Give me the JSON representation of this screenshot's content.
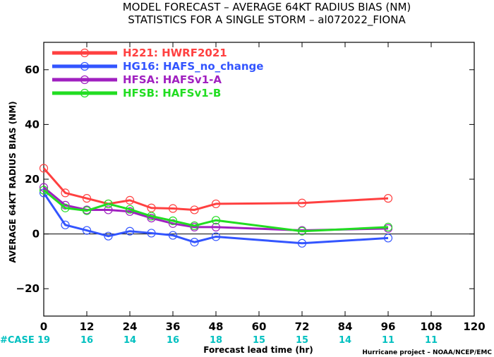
{
  "chart_data": {
    "type": "line",
    "title": "MODEL FORECAST – AVERAGE 64KT RADIUS BIAS (NM)",
    "subtitle": "STATISTICS FOR A SINGLE STORM – al072022_FIONA",
    "xlabel": "Forecast lead time (hr)",
    "ylabel": "AVERAGE 64KT RADIUS BIAS (NM)",
    "xlim": [
      0,
      120
    ],
    "ylim": [
      -30,
      70
    ],
    "xticks": [
      0,
      12,
      24,
      36,
      48,
      60,
      72,
      84,
      96,
      108,
      120
    ],
    "yticks": [
      -20,
      0,
      20,
      40,
      60
    ],
    "zero_line": true,
    "legend_position": "top-left",
    "series": [
      {
        "name": "H221",
        "label": "HWRF2021",
        "color": "#ff4040",
        "x": [
          0,
          6,
          12,
          18,
          24,
          30,
          36,
          42,
          48,
          72,
          96
        ],
        "y": [
          24,
          15,
          13,
          11,
          12.3,
          9.5,
          9.3,
          8.8,
          11,
          11.3,
          13
        ]
      },
      {
        "name": "HG16",
        "label": "HAFS_no_change",
        "color": "#3355ff",
        "x": [
          0,
          6,
          12,
          18,
          24,
          30,
          36,
          42,
          48,
          72,
          96
        ],
        "y": [
          15,
          3.3,
          1.3,
          -0.8,
          1,
          0.3,
          -0.5,
          -3,
          -1,
          -3.4,
          -1.5
        ]
      },
      {
        "name": "HFSA",
        "label": "HAFSv1-A",
        "color": "#a020c0",
        "x": [
          0,
          6,
          12,
          18,
          24,
          30,
          36,
          42,
          48,
          72,
          96
        ],
        "y": [
          17,
          10.5,
          8.8,
          8.8,
          8.2,
          5.8,
          3.8,
          2.5,
          2.5,
          1.3,
          2
        ]
      },
      {
        "name": "HFSB",
        "label": "HAFSv1-B",
        "color": "#22dd22",
        "x": [
          0,
          6,
          12,
          18,
          24,
          30,
          36,
          42,
          48,
          72,
          96
        ],
        "y": [
          16,
          9.5,
          8.5,
          11,
          9,
          6.5,
          4.8,
          3,
          5,
          1,
          2.5
        ]
      }
    ],
    "case_label": "#CASE",
    "cases": [
      {
        "x": 0,
        "n": "19"
      },
      {
        "x": 12,
        "n": "16"
      },
      {
        "x": 24,
        "n": "14"
      },
      {
        "x": 36,
        "n": "16"
      },
      {
        "x": 48,
        "n": "18"
      },
      {
        "x": 60,
        "n": "15"
      },
      {
        "x": 72,
        "n": "15"
      },
      {
        "x": 84,
        "n": "14"
      },
      {
        "x": 96,
        "n": "11"
      },
      {
        "x": 108,
        "n": "11"
      }
    ],
    "credit": "Hurricane project – NOAA/NCEP/EMC"
  }
}
